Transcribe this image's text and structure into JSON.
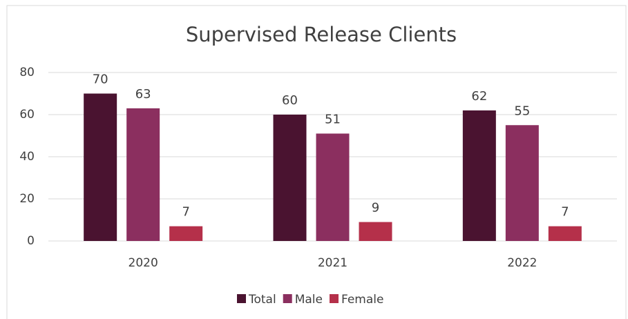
{
  "chart_data": {
    "type": "bar",
    "title": "Supervised Release Clients",
    "categories": [
      "2020",
      "2021",
      "2022"
    ],
    "series": [
      {
        "name": "Total",
        "color": "#4a1330",
        "values": [
          70,
          60,
          62
        ]
      },
      {
        "name": "Male",
        "color": "#8b2f5f",
        "values": [
          63,
          51,
          55
        ]
      },
      {
        "name": "Female",
        "color": "#b5304a",
        "values": [
          7,
          9,
          7
        ]
      }
    ],
    "ylim": [
      0,
      80
    ],
    "yticks": [
      0,
      20,
      40,
      60,
      80
    ],
    "grid": true,
    "legend": "bottom"
  }
}
